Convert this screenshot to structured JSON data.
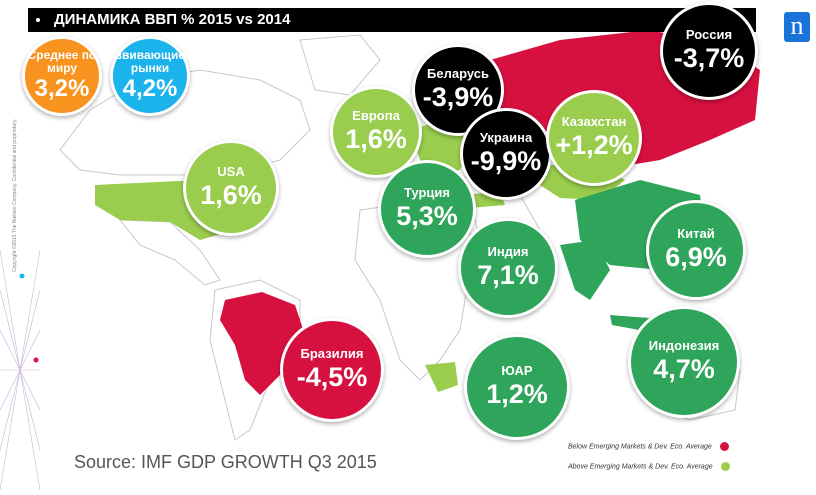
{
  "title": "ДИНАМИКА ВВП % 2015 vs 2014",
  "copyright": "Copyright ©2015 The Nielsen Company. Confidential and proprietary.",
  "logo_letter": "n",
  "source": "Source: IMF GDP GROWTH Q3 2015",
  "colors": {
    "below": "#d6113f",
    "above_light": "#9acd4e",
    "above_dark": "#2ea55b",
    "russia_group": "#000000",
    "world_avg": "#f7931e",
    "emerging": "#1ab3ec"
  },
  "legend": {
    "below_label": "Below Emerging Markets & Dev. Eco. Average",
    "above_label": "Above Emerging Markets & Dev. Eco. Average"
  },
  "chart_data": {
    "type": "table",
    "entries": [
      {
        "name": "Среднее по миру",
        "value": "3,2%",
        "category": "world-average"
      },
      {
        "name": "Развивающиеся рынки",
        "value": "4,2%",
        "category": "emerging-average"
      },
      {
        "name": "USA",
        "value": "1,6%",
        "category": "above"
      },
      {
        "name": "Европа",
        "value": "1,6%",
        "category": "above"
      },
      {
        "name": "Беларусь",
        "value": "-3,9%",
        "category": "below"
      },
      {
        "name": "Украина",
        "value": "-9,9%",
        "category": "below"
      },
      {
        "name": "Казахстан",
        "value": "+1,2%",
        "category": "above"
      },
      {
        "name": "Россия",
        "value": "-3,7%",
        "category": "below"
      },
      {
        "name": "Турция",
        "value": "5,3%",
        "category": "above"
      },
      {
        "name": "Индия",
        "value": "7,1%",
        "category": "above"
      },
      {
        "name": "Китай",
        "value": "6,9%",
        "category": "above"
      },
      {
        "name": "Бразилия",
        "value": "-4,5%",
        "category": "below"
      },
      {
        "name": "ЮАР",
        "value": "1,2%",
        "category": "above"
      },
      {
        "name": "Индонезия",
        "value": "4,7%",
        "category": "above"
      }
    ]
  }
}
